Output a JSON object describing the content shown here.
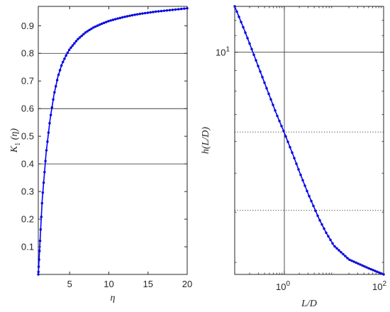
{
  "chart_data": [
    {
      "type": "line",
      "title": "",
      "xlabel": "η",
      "ylabel": "K1(η)",
      "ylabel_parts": {
        "base": "K",
        "sub": "1",
        "rest": "(η)"
      },
      "xlim": [
        1,
        20
      ],
      "ylim": [
        0,
        0.97
      ],
      "x_ticks": [
        "5",
        "10",
        "15",
        "20"
      ],
      "x_tick_values": [
        5,
        10,
        15,
        20
      ],
      "y_ticks": [
        "0.1",
        "0.2",
        "0.3",
        "0.4",
        "0.5",
        "0.6",
        "0.7",
        "0.8",
        "0.9"
      ],
      "y_tick_values": [
        0.1,
        0.2,
        0.3,
        0.4,
        0.5,
        0.6,
        0.7,
        0.8,
        0.9
      ],
      "grid": "horizontal lines at 0.4, 0.6, 0.8",
      "grid_values": [
        0.4,
        0.6,
        0.8
      ],
      "series_color": "#0000ff",
      "marker": "dot",
      "series": [
        {
          "x": [
            1.0,
            1.5,
            2.0,
            2.5,
            3.0,
            3.5,
            4.0,
            4.5,
            5.0,
            6.0,
            7.0,
            8.0,
            9.0,
            10.0,
            11.0,
            12.0,
            13.0,
            14.0,
            15.0,
            16.0,
            17.0,
            18.0,
            19.0,
            20.0
          ],
          "y": [
            0.0,
            0.27,
            0.44,
            0.56,
            0.65,
            0.715,
            0.76,
            0.79,
            0.815,
            0.85,
            0.875,
            0.893,
            0.906,
            0.917,
            0.925,
            0.932,
            0.938,
            0.943,
            0.947,
            0.951,
            0.954,
            0.957,
            0.96,
            0.963
          ]
        }
      ]
    },
    {
      "type": "line",
      "title": "",
      "xlabel": "L/D",
      "ylabel": "h(L/D)",
      "x_scale": "log",
      "y_scale": "log",
      "xlim": [
        0.1,
        100
      ],
      "ylim": [
        2.8,
        13
      ],
      "x_ticks": [
        {
          "value": 1,
          "base": "10",
          "exp": "0"
        },
        {
          "value": 100,
          "base": "10",
          "exp": "2"
        }
      ],
      "y_ticks": [
        {
          "value": 10,
          "base": "10",
          "exp": "1"
        }
      ],
      "grid": "vertical line at L/D = 1; horizontal solid line at 10; dotted lines near 6.33 and 4.04",
      "grid_values": {
        "x_solid": [
          1
        ],
        "y_solid": [
          10
        ],
        "y_dotted": [
          6.33,
          4.04
        ]
      },
      "series_color": "#0000ff",
      "marker": "dot",
      "series": [
        {
          "x": [
            0.1,
            0.15,
            0.2,
            0.3,
            0.5,
            0.7,
            1.0,
            1.5,
            2.0,
            3.0,
            5.0,
            7.0,
            10.0,
            20.0,
            50.0,
            100.0
          ],
          "y": [
            13.0,
            11.5,
            10.5,
            9.2,
            7.8,
            7.0,
            6.3,
            5.55,
            5.05,
            4.45,
            3.85,
            3.55,
            3.3,
            3.05,
            2.9,
            2.8
          ]
        }
      ]
    }
  ]
}
